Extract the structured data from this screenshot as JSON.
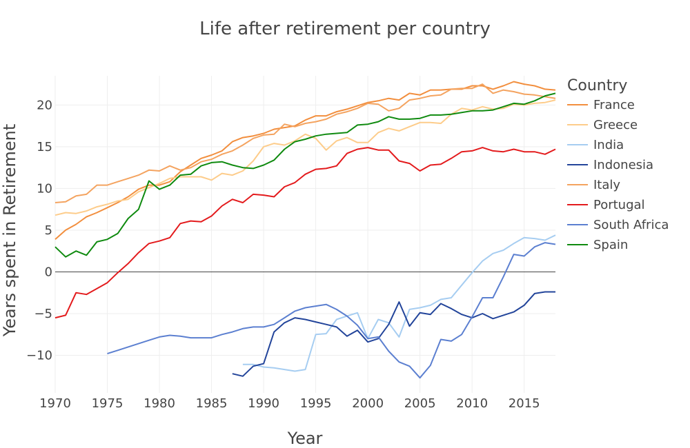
{
  "chart_data": {
    "type": "line",
    "title": "Life after retirement per country",
    "xlabel": "Year",
    "ylabel": "Years spent in Retirement",
    "xlim": [
      1970,
      2018
    ],
    "ylim": [
      -14.5,
      23.5
    ],
    "xticks": [
      1970,
      1975,
      1980,
      1985,
      1990,
      1995,
      2000,
      2005,
      2010,
      2015
    ],
    "xtick_labels": [
      "1970",
      "1975",
      "1980",
      "1985",
      "1990",
      "1995",
      "2000",
      "2005",
      "2010",
      "2015"
    ],
    "yticks": [
      -10,
      -5,
      0,
      5,
      10,
      15,
      20
    ],
    "ytick_labels": [
      "−10",
      "−5",
      "0",
      "5",
      "10",
      "15",
      "20"
    ],
    "grid": true,
    "legend_title": "Country",
    "legend_position": "right",
    "series": [
      {
        "name": "France",
        "color": "#f28e3d",
        "start": 1970,
        "values": [
          3.9,
          5.0,
          5.7,
          6.6,
          7.1,
          7.7,
          8.3,
          9.0,
          9.9,
          10.4,
          10.4,
          10.8,
          12.0,
          12.8,
          13.6,
          14.0,
          14.5,
          15.6,
          16.1,
          16.3,
          16.6,
          17.1,
          17.3,
          17.5,
          18.2,
          18.7,
          18.7,
          19.2,
          19.5,
          19.9,
          20.3,
          20.5,
          20.8,
          20.6,
          21.4,
          21.2,
          21.8,
          21.8,
          21.9,
          21.9,
          22.3,
          22.3,
          21.9,
          22.3,
          22.8,
          22.5,
          22.3,
          21.9,
          21.8
        ]
      },
      {
        "name": "Greece",
        "color": "#fdcc8a",
        "start": 1970,
        "values": [
          6.8,
          7.1,
          7.0,
          7.3,
          7.8,
          8.1,
          8.5,
          8.7,
          9.6,
          10.1,
          10.6,
          11.2,
          11.4,
          11.4,
          11.4,
          11.0,
          11.8,
          11.6,
          12.1,
          13.3,
          15.0,
          15.4,
          15.2,
          15.7,
          16.5,
          16.0,
          14.6,
          15.7,
          16.1,
          15.5,
          15.5,
          16.7,
          17.2,
          16.9,
          17.4,
          17.9,
          17.9,
          17.8,
          18.9,
          19.6,
          19.4,
          19.8,
          19.5,
          19.6,
          20.1,
          20.0,
          20.2,
          20.3,
          20.6
        ]
      },
      {
        "name": "India",
        "color": "#a6cdf1",
        "start": 1988,
        "values": [
          -11.1,
          -11.1,
          -11.4,
          -11.5,
          -11.7,
          -11.9,
          -11.7,
          -7.5,
          -7.4,
          -5.7,
          -5.3,
          -4.9,
          -8.0,
          -5.7,
          -6.1,
          -7.8,
          -4.5,
          -4.3,
          -4.0,
          -3.3,
          -3.1,
          -1.6,
          -0.1,
          1.3,
          2.2,
          2.6,
          3.4,
          4.1,
          4.0,
          3.8,
          4.4
        ]
      },
      {
        "name": "Indonesia",
        "color": "#22449a",
        "start": 1987,
        "values": [
          -12.2,
          -12.5,
          -11.3,
          -11.0,
          -7.2,
          -6.1,
          -5.5,
          -5.7,
          -6.0,
          -6.3,
          -6.6,
          -7.7,
          -7.0,
          -8.4,
          -8.0,
          -6.3,
          -3.6,
          -6.5,
          -4.9,
          -5.1,
          -3.8,
          -4.4,
          -5.1,
          -5.5,
          -5.0,
          -5.6,
          -5.2,
          -4.8,
          -4.0,
          -2.6,
          -2.4,
          -2.4
        ]
      },
      {
        "name": "Italy",
        "color": "#f4a35f",
        "start": 1970,
        "values": [
          8.3,
          8.4,
          9.1,
          9.3,
          10.4,
          10.4,
          10.8,
          11.2,
          11.6,
          12.2,
          12.1,
          12.7,
          12.2,
          12.5,
          13.2,
          13.5,
          14.1,
          14.5,
          15.2,
          16.0,
          16.4,
          16.5,
          17.7,
          17.4,
          17.8,
          18.0,
          18.3,
          18.9,
          19.2,
          19.6,
          20.2,
          20.1,
          19.3,
          19.6,
          20.6,
          20.8,
          21.1,
          21.2,
          21.9,
          22.0,
          22.0,
          22.5,
          21.4,
          21.8,
          21.6,
          21.3,
          21.2,
          21.0,
          20.8
        ]
      },
      {
        "name": "Portugal",
        "color": "#e31a1c",
        "start": 1970,
        "values": [
          -5.5,
          -5.2,
          -2.5,
          -2.7,
          -2.0,
          -1.3,
          -0.1,
          1.0,
          2.3,
          3.4,
          3.7,
          4.1,
          5.8,
          6.1,
          6.0,
          6.7,
          7.9,
          8.7,
          8.3,
          9.3,
          9.2,
          9.0,
          10.2,
          10.7,
          11.7,
          12.3,
          12.4,
          12.7,
          14.2,
          14.7,
          14.9,
          14.6,
          14.6,
          13.3,
          13.0,
          12.1,
          12.8,
          12.9,
          13.6,
          14.4,
          14.5,
          14.9,
          14.5,
          14.4,
          14.7,
          14.4,
          14.4,
          14.1,
          14.7
        ]
      },
      {
        "name": "South Africa",
        "color": "#5b7fd0",
        "start": 1975,
        "values": [
          -9.8,
          -9.4,
          -9.0,
          -8.6,
          -8.2,
          -7.8,
          -7.6,
          -7.7,
          -7.9,
          -7.9,
          -7.9,
          -7.5,
          -7.2,
          -6.8,
          -6.6,
          -6.6,
          -6.3,
          -5.5,
          -4.7,
          -4.3,
          -4.1,
          -3.9,
          -4.5,
          -5.3,
          -6.4,
          -8.0,
          -7.8,
          -9.5,
          -10.8,
          -11.3,
          -12.7,
          -11.2,
          -8.1,
          -8.3,
          -7.5,
          -5.4,
          -3.1,
          -3.1,
          -0.6,
          2.1,
          1.9,
          3.0,
          3.5,
          3.3
        ]
      },
      {
        "name": "Spain",
        "color": "#0f8a0f",
        "start": 1970,
        "values": [
          3.0,
          1.8,
          2.5,
          2.0,
          3.6,
          3.9,
          4.6,
          6.4,
          7.5,
          10.9,
          9.9,
          10.4,
          11.6,
          11.7,
          12.7,
          13.1,
          13.2,
          12.8,
          12.5,
          12.4,
          12.8,
          13.4,
          14.7,
          15.6,
          15.9,
          16.3,
          16.5,
          16.6,
          16.7,
          17.6,
          17.7,
          18.0,
          18.6,
          18.3,
          18.3,
          18.4,
          18.8,
          18.8,
          18.9,
          19.1,
          19.3,
          19.3,
          19.4,
          19.8,
          20.2,
          20.1,
          20.5,
          21.1,
          21.4
        ]
      }
    ]
  }
}
